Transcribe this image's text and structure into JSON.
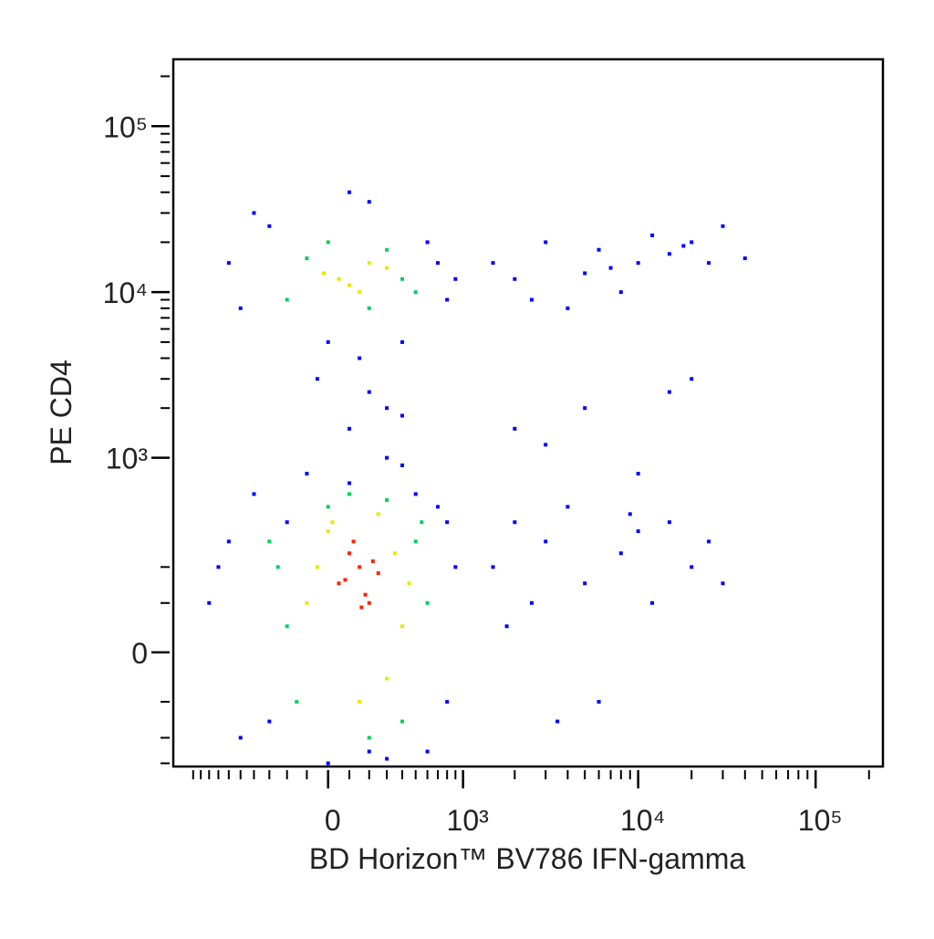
{
  "chart_data": {
    "type": "scatter",
    "x_label": "BD Horizon™ BV786 IFN-gamma",
    "y_label": "PE CD4",
    "xscale": "logicle",
    "yscale": "logicle",
    "xlim": [
      -1310,
      239500
    ],
    "ylim": [
      -315,
      253000
    ],
    "xticks": [
      0,
      {
        "value": 1000,
        "label": "10³"
      },
      {
        "value": 10000,
        "label": "10⁴"
      },
      {
        "value": 100000,
        "label": "10⁵"
      }
    ],
    "yticks": [
      0,
      {
        "value": 1000,
        "label": "10³"
      },
      {
        "value": 10000,
        "label": "10⁴"
      },
      {
        "value": 100000,
        "label": "10⁵"
      }
    ],
    "xminor_ticks": [
      -1000,
      -900,
      -800,
      -700,
      -600,
      -500,
      -400,
      -300,
      -200,
      -100,
      100,
      200,
      300,
      400,
      500,
      600,
      700,
      800,
      900,
      2000,
      3000,
      4000,
      5000,
      6000,
      7000,
      8000,
      9000,
      20000,
      30000,
      40000,
      50000,
      60000,
      70000,
      80000,
      90000,
      200000
    ],
    "yminor_ticks": [
      -300,
      -200,
      -100,
      100,
      200,
      2000,
      3000,
      4000,
      5000,
      6000,
      7000,
      8000,
      9000,
      20000,
      30000,
      40000,
      50000,
      60000,
      70000,
      80000,
      90000,
      200000
    ],
    "series": [
      {
        "color": "#0000ff",
        "x": [
          -800,
          -600,
          -500,
          900,
          800,
          700,
          -400,
          600,
          300,
          -300,
          -100,
          100,
          200,
          500,
          -700,
          800,
          400,
          0,
          -200,
          300,
          100,
          200,
          -50,
          300,
          150,
          400,
          0,
          -600,
          -500,
          700,
          800,
          600,
          -300,
          400,
          -400,
          900,
          100,
          200,
          1500,
          2000,
          3000,
          4000,
          5000,
          6000,
          8000,
          10000,
          12000,
          15000,
          20000,
          25000,
          30000,
          40000,
          2500,
          7000,
          18000,
          1500,
          2000,
          2500,
          3000,
          4000,
          5000,
          6000,
          8000,
          10000,
          12000,
          15000,
          20000,
          25000,
          30000,
          3500,
          9000,
          1800,
          2000,
          5000,
          10000,
          20000,
          3000,
          15000
        ],
        "y": [
          100,
          300,
          -200,
          200,
          -100,
          500,
          600,
          -250,
          -280,
          -150,
          800,
          700,
          -250,
          600,
          200,
          400,
          900,
          -300,
          400,
          1000,
          1500,
          2500,
          3000,
          2000,
          4000,
          1800,
          5000,
          15000,
          8000,
          15000,
          9000,
          20000,
          25000,
          5000,
          30000,
          12000,
          40000,
          35000,
          15000,
          12000,
          20000,
          8000,
          13000,
          18000,
          10000,
          15000,
          22000,
          17000,
          20000,
          15000,
          25000,
          16000,
          9000,
          14000,
          19000,
          200,
          400,
          100,
          300,
          500,
          150,
          -100,
          250,
          350,
          100,
          400,
          200,
          300,
          150,
          -150,
          450,
          50,
          1500,
          2000,
          800,
          3000,
          1200,
          2500
        ]
      },
      {
        "color": "#00d060",
        "x": [
          -300,
          -200,
          500,
          600,
          -150,
          400,
          100,
          300,
          0,
          550,
          200,
          -250,
          -200,
          300,
          400,
          -100,
          500,
          0,
          200
        ],
        "y": [
          300,
          50,
          300,
          100,
          -100,
          -150,
          600,
          550,
          500,
          400,
          -200,
          200,
          9000,
          18000,
          12000,
          16000,
          10000,
          20000,
          8000
        ]
      },
      {
        "color": "#e8e800",
        "x": [
          -100,
          350,
          0,
          400,
          300,
          -50,
          20,
          450,
          150,
          250,
          50,
          200,
          150,
          -20,
          100,
          300
        ],
        "y": [
          100,
          250,
          350,
          50,
          -50,
          200,
          400,
          150,
          -100,
          450,
          12000,
          15000,
          10000,
          13000,
          11000,
          14000
        ]
      },
      {
        "color": "#ff2000",
        "x": [
          50,
          150,
          200,
          100,
          250,
          180,
          120,
          80,
          220,
          160
        ],
        "y": [
          150,
          200,
          100,
          250,
          180,
          120,
          300,
          160,
          220,
          90
        ]
      }
    ]
  }
}
